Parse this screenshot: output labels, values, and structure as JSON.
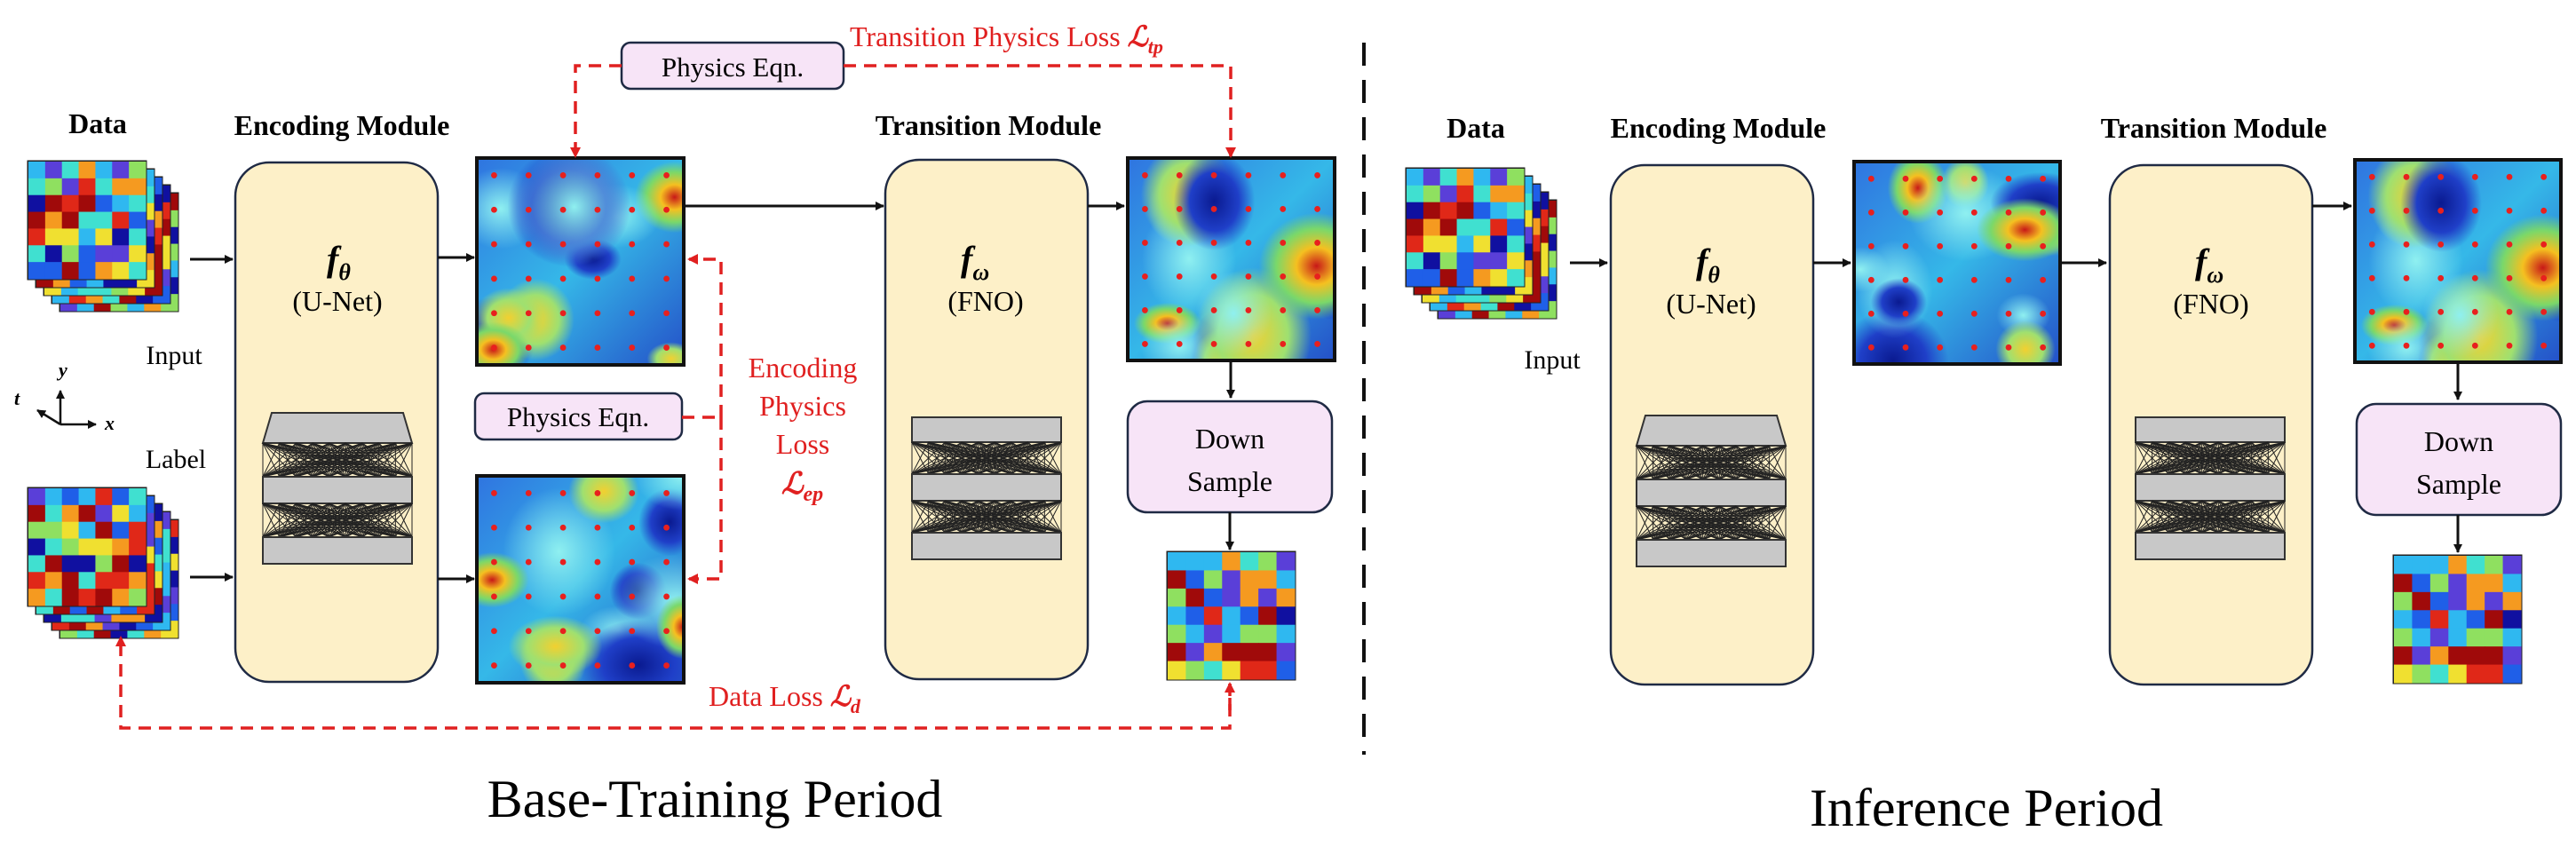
{
  "training": {
    "period_label": "Base-Training Period",
    "data_label": "Data",
    "encoding_module_label": "Encoding Module",
    "transition_module_label": "Transition Module",
    "encoder_symbol": "f",
    "encoder_subscript": "θ",
    "encoder_name": "(U-Net)",
    "transition_symbol": "f",
    "transition_subscript": "ω",
    "transition_name": "(FNO)",
    "input_label": "Input",
    "label_label": "Label",
    "physics_eqn_top": "Physics Eqn.",
    "physics_eqn_mid": "Physics Eqn.",
    "transition_loss_text": "Transition Physics Loss ",
    "transition_loss_symbol": "ℒ",
    "transition_loss_subscript": "tp",
    "encoding_loss_line1": "Encoding",
    "encoding_loss_line2": "Physics",
    "encoding_loss_line3": "Loss",
    "encoding_loss_symbol": "ℒ",
    "encoding_loss_subscript": "ep",
    "data_loss_text": "Data Loss ",
    "data_loss_symbol": "ℒ",
    "data_loss_subscript": "d",
    "down_sample_line1": "Down",
    "down_sample_line2": "Sample",
    "axis_y": "y",
    "axis_x": "x",
    "axis_t": "t"
  },
  "inference": {
    "period_label": "Inference Period",
    "data_label": "Data",
    "encoding_module_label": "Encoding Module",
    "transition_module_label": "Transition Module",
    "encoder_symbol": "f",
    "encoder_subscript": "θ",
    "encoder_name": "(U-Net)",
    "transition_symbol": "f",
    "transition_subscript": "ω",
    "transition_name": "(FNO)",
    "input_label": "Input",
    "down_sample_line1": "Down",
    "down_sample_line2": "Sample"
  },
  "colors": {
    "module_fill": "#fdf0c8",
    "module_stroke": "#1f2a44",
    "physics_box_fill": "#f7e4f7",
    "loss_red": "#e02020",
    "layer_gray": "#c8c8c8",
    "field_low": "#1030c0",
    "field_high": "#c01010"
  }
}
